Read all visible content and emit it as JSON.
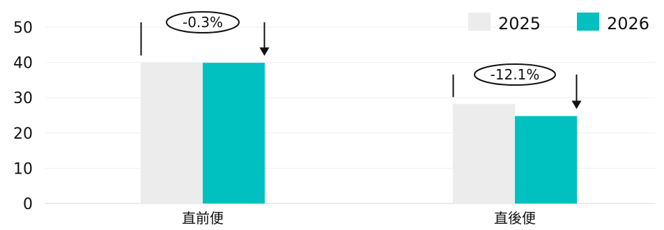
{
  "chart_data": {
    "type": "bar",
    "categories": [
      "直前便",
      "直後便"
    ],
    "series": [
      {
        "name": "2025",
        "values": [
          40.0,
          28.2
        ],
        "color": "#ebeceb"
      },
      {
        "name": "2026",
        "values": [
          39.9,
          24.8
        ],
        "color": "#00c0c0"
      }
    ],
    "annotations": [
      "-0.3%",
      "-12.1%"
    ],
    "ylim": [
      0,
      50
    ],
    "yticks": [
      "0",
      "10",
      "20",
      "30",
      "40",
      "50"
    ],
    "grid": true,
    "legend": "top-right"
  }
}
